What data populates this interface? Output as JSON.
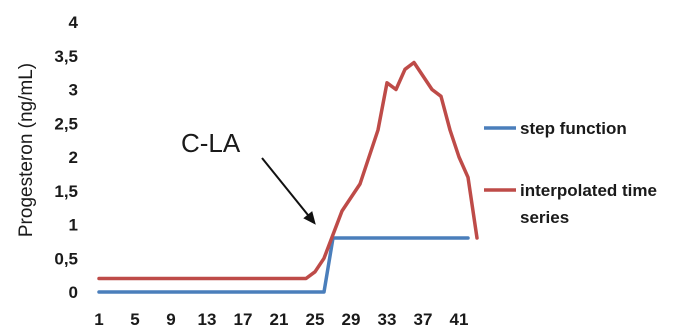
{
  "chart_data": {
    "type": "line",
    "title": "",
    "xlabel": "",
    "ylabel": "Progesteron (ng/mL)",
    "ylim": [
      0,
      4
    ],
    "yticks": [
      "0",
      "0,5",
      "1",
      "1,5",
      "2",
      "2,5",
      "3",
      "3,5",
      "4"
    ],
    "y_tick_values": [
      0,
      0.5,
      1,
      1.5,
      2,
      2.5,
      3,
      3.5,
      4
    ],
    "xlim": [
      1,
      43
    ],
    "xticks": [
      1,
      5,
      9,
      13,
      17,
      21,
      25,
      29,
      33,
      37,
      41
    ],
    "grid": false,
    "legend_position": "right",
    "annotation": {
      "text": "C-LA",
      "points_to": {
        "x": 27,
        "y": 0.8
      }
    },
    "series": [
      {
        "name": "step function",
        "color": "#4a7ebb",
        "points": [
          [
            1,
            0
          ],
          [
            26,
            0
          ],
          [
            27,
            0.8
          ],
          [
            42,
            0.8
          ]
        ]
      },
      {
        "name": "interpolated time series",
        "color": "#be4b48",
        "points": [
          [
            1,
            0.2
          ],
          [
            24,
            0.2
          ],
          [
            25,
            0.3
          ],
          [
            26,
            0.5
          ],
          [
            27,
            0.85
          ],
          [
            28,
            1.2
          ],
          [
            29,
            1.4
          ],
          [
            30,
            1.6
          ],
          [
            31,
            2.0
          ],
          [
            32,
            2.4
          ],
          [
            33,
            3.1
          ],
          [
            34,
            3.0
          ],
          [
            35,
            3.3
          ],
          [
            36,
            3.4
          ],
          [
            37,
            3.2
          ],
          [
            38,
            3.0
          ],
          [
            39,
            2.9
          ],
          [
            40,
            2.4
          ],
          [
            41,
            2.0
          ],
          [
            42,
            1.7
          ],
          [
            43,
            0.8
          ]
        ]
      }
    ]
  }
}
